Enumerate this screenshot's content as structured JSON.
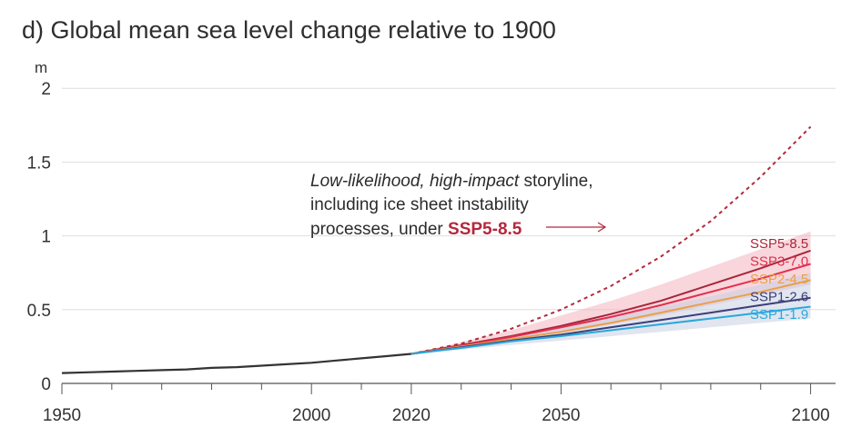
{
  "chart_data": {
    "type": "line",
    "title": "d) Global mean sea level change relative to 1900",
    "ylabel": "m",
    "xlim": [
      1950,
      2105
    ],
    "ylim": [
      0,
      2.1
    ],
    "x_ticks": [
      1950,
      2000,
      2020,
      2050,
      2100
    ],
    "y_ticks": [
      0,
      0.5,
      1,
      1.5,
      2
    ],
    "y_tick_labels": [
      "0",
      "0.5",
      "1",
      "1.5",
      "2"
    ],
    "grid": "horizontal",
    "historical": {
      "color": "#333333",
      "x": [
        1950,
        1955,
        1960,
        1965,
        1970,
        1975,
        1980,
        1985,
        1990,
        1995,
        2000,
        2005,
        2010,
        2015,
        2020
      ],
      "y": [
        0.07,
        0.075,
        0.08,
        0.085,
        0.09,
        0.095,
        0.105,
        0.11,
        0.12,
        0.13,
        0.14,
        0.155,
        0.17,
        0.185,
        0.2
      ]
    },
    "series": [
      {
        "name": "SSP5-8.5",
        "color": "#a8263a",
        "x": [
          2020,
          2030,
          2040,
          2050,
          2060,
          2070,
          2080,
          2090,
          2100
        ],
        "y": [
          0.2,
          0.26,
          0.32,
          0.39,
          0.47,
          0.56,
          0.67,
          0.78,
          0.9
        ],
        "band": {
          "color": "#f2b5bf",
          "lower": [
            0.2,
            0.24,
            0.29,
            0.34,
            0.4,
            0.46,
            0.53,
            0.6,
            0.67
          ],
          "upper": [
            0.2,
            0.28,
            0.36,
            0.46,
            0.56,
            0.67,
            0.79,
            0.91,
            1.03
          ]
        }
      },
      {
        "name": "SSP3-7.0",
        "color": "#e0304f",
        "x": [
          2020,
          2030,
          2040,
          2050,
          2060,
          2070,
          2080,
          2090,
          2100
        ],
        "y": [
          0.2,
          0.255,
          0.315,
          0.38,
          0.45,
          0.53,
          0.62,
          0.71,
          0.81
        ]
      },
      {
        "name": "SSP2-4.5",
        "color": "#e9a047",
        "x": [
          2020,
          2030,
          2040,
          2050,
          2060,
          2070,
          2080,
          2090,
          2100
        ],
        "y": [
          0.2,
          0.25,
          0.3,
          0.35,
          0.41,
          0.48,
          0.55,
          0.62,
          0.7
        ]
      },
      {
        "name": "SSP1-2.6",
        "color": "#3b3f78",
        "x": [
          2020,
          2030,
          2040,
          2050,
          2060,
          2070,
          2080,
          2090,
          2100
        ],
        "y": [
          0.2,
          0.245,
          0.29,
          0.33,
          0.38,
          0.43,
          0.48,
          0.53,
          0.58
        ],
        "band": {
          "color": "#c9cfe3",
          "lower": [
            0.2,
            0.23,
            0.26,
            0.29,
            0.32,
            0.35,
            0.38,
            0.41,
            0.44
          ],
          "upper": [
            0.2,
            0.26,
            0.32,
            0.38,
            0.45,
            0.52,
            0.59,
            0.67,
            0.75
          ]
        }
      },
      {
        "name": "SSP1-1.9",
        "color": "#29a8dc",
        "x": [
          2020,
          2030,
          2040,
          2050,
          2060,
          2070,
          2080,
          2090,
          2100
        ],
        "y": [
          0.2,
          0.24,
          0.285,
          0.32,
          0.36,
          0.4,
          0.44,
          0.48,
          0.52
        ]
      }
    ],
    "storyline": {
      "color": "#b3283c",
      "style": "dotted",
      "x": [
        2020,
        2030,
        2040,
        2050,
        2060,
        2070,
        2080,
        2090,
        2100
      ],
      "y": [
        0.2,
        0.27,
        0.37,
        0.5,
        0.66,
        0.86,
        1.1,
        1.4,
        1.74
      ]
    },
    "annotation": {
      "line1_italic": "Low-likelihood, high-impact",
      "line1_rest": " storyline,",
      "line2": "including ice sheet instability",
      "line3": "processes, under ",
      "highlight": "SSP5-8.5",
      "highlight_color": "#b3283c"
    }
  }
}
